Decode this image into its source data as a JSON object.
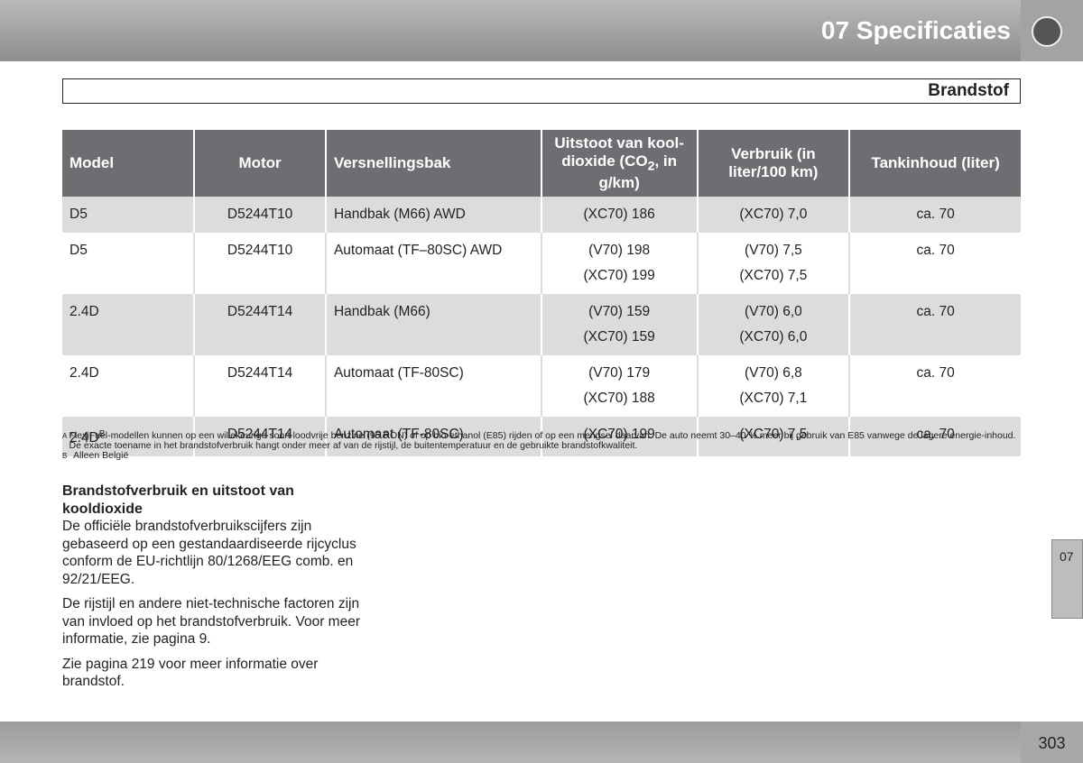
{
  "header": {
    "title": "07 Specificaties"
  },
  "section": {
    "title": "Brandstof"
  },
  "table": {
    "headers": [
      {
        "text": "Model"
      },
      {
        "text": "Motor"
      },
      {
        "text": "Versnellingsbak"
      },
      {
        "text": "Uitstoot van kool-dioxide (CO",
        "sub": "2",
        "post": ", in g/km)"
      },
      {
        "text": "Verbruik (in liter/100 km)"
      },
      {
        "text": "Tankinhoud (liter)"
      }
    ],
    "rows": [
      {
        "model": "D5",
        "motor": "D5244T10",
        "gearbox": "Handbak (M66) AWD",
        "co2": [
          "(XC70) 186"
        ],
        "fuel": [
          "(XC70) 7,0"
        ],
        "tank": "ca. 70"
      },
      {
        "model": "D5",
        "motor": "D5244T10",
        "gearbox": "Automaat (TF–80SC) AWD",
        "co2": [
          "(V70) 198",
          "(XC70) 199"
        ],
        "fuel": [
          "(V70) 7,5",
          "(XC70) 7,5"
        ],
        "tank": "ca. 70"
      },
      {
        "model": "2.4D",
        "motor": "D5244T14",
        "gearbox": "Handbak (M66)",
        "co2": [
          "(V70) 159",
          "(XC70) 159"
        ],
        "fuel": [
          "(V70) 6,0",
          "(XC70) 6,0"
        ],
        "tank": "ca. 70"
      },
      {
        "model": "2.4D",
        "motor": "D5244T14",
        "gearbox": "Automaat (TF-80SC)",
        "co2": [
          "(V70) 179",
          "(XC70) 188"
        ],
        "fuel": [
          "(V70) 6,8",
          "(XC70) 7,1"
        ],
        "tank": "ca. 70"
      },
      {
        "model": "2.4D",
        "sup": "B",
        "motor": "D5244T14",
        "gearbox": "Automaat (TF-80SC)",
        "co2": [
          "(XC70) 199"
        ],
        "fuel": [
          "(XC70) 7,5"
        ],
        "tank": "ca. 70"
      }
    ]
  },
  "footnotes": [
    {
      "mark": "A",
      "text": "FlexiFuel-modellen kunnen op een willekeurige soort loodvrije benzine (95 RON) of op bio-ethanol (E85) rijden of op een mengsel daarvan. De auto neemt 30–40 % meer bij gebruik van E85 vanwege de lagere energie-inhoud. De exacte toename in het brandstofverbruik hangt onder meer af van de rijstijl, de buitentemperatuur en de gebruikte brandstofkwaliteit."
    },
    {
      "mark": "B",
      "text": "Alleen België"
    }
  ],
  "body": {
    "heading": "Brandstofverbruik en uitstoot van kooldioxide",
    "paragraphs": [
      "De officiële brandstofverbruikscijfers zijn gebaseerd op een gestandaardiseerde rijcyclus conform de EU-richtlijn 80/1268/EEG comb. en 92/21/EEG.",
      "De rijstijl en andere niet-technische factoren zijn van invloed op het brandstofverbruik. Voor meer informatie, zie pagina 9.",
      "Zie pagina 219  voor meer informatie over brandstof."
    ]
  },
  "side_tab": "07",
  "page_number": "303"
}
